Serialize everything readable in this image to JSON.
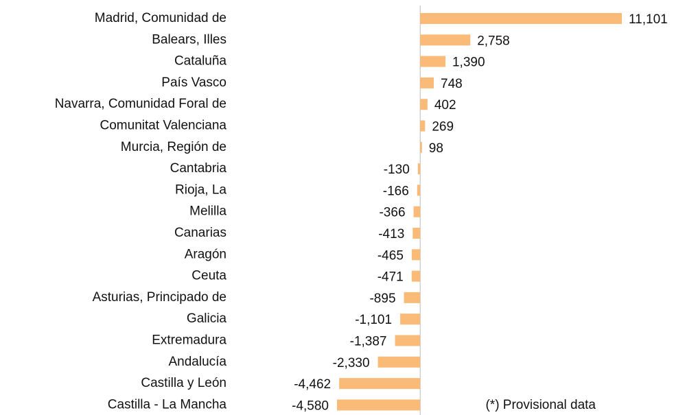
{
  "chart_data": {
    "type": "bar",
    "orientation": "horizontal",
    "color": "#fbbb78",
    "categories": [
      "Madrid, Comunidad de",
      "Balears, Illes",
      "Cataluña",
      "País Vasco",
      "Navarra, Comunidad Foral de",
      "Comunitat Valenciana",
      "Murcia, Región de",
      "Cantabria",
      "Rioja, La",
      "Melilla",
      "Canarias",
      "Aragón",
      "Ceuta",
      "Asturias, Principado de",
      "Galicia",
      "Extremadura",
      "Andalucía",
      "Castilla y León",
      "Castilla - La Mancha"
    ],
    "values": [
      11101,
      2758,
      1390,
      748,
      402,
      269,
      98,
      -130,
      -166,
      -366,
      -413,
      -465,
      -471,
      -895,
      -1101,
      -1387,
      -2330,
      -4462,
      -4580
    ],
    "value_labels": [
      "11,101",
      "2,758",
      "1,390",
      "748",
      "402",
      "269",
      "98",
      "-130",
      "-166",
      "-366",
      "-413",
      "-465",
      "-471",
      "-895",
      "-1,101",
      "-1,387",
      "-2,330",
      "-4,462",
      "-4,580"
    ],
    "annotation": "(*) Provisional data"
  }
}
